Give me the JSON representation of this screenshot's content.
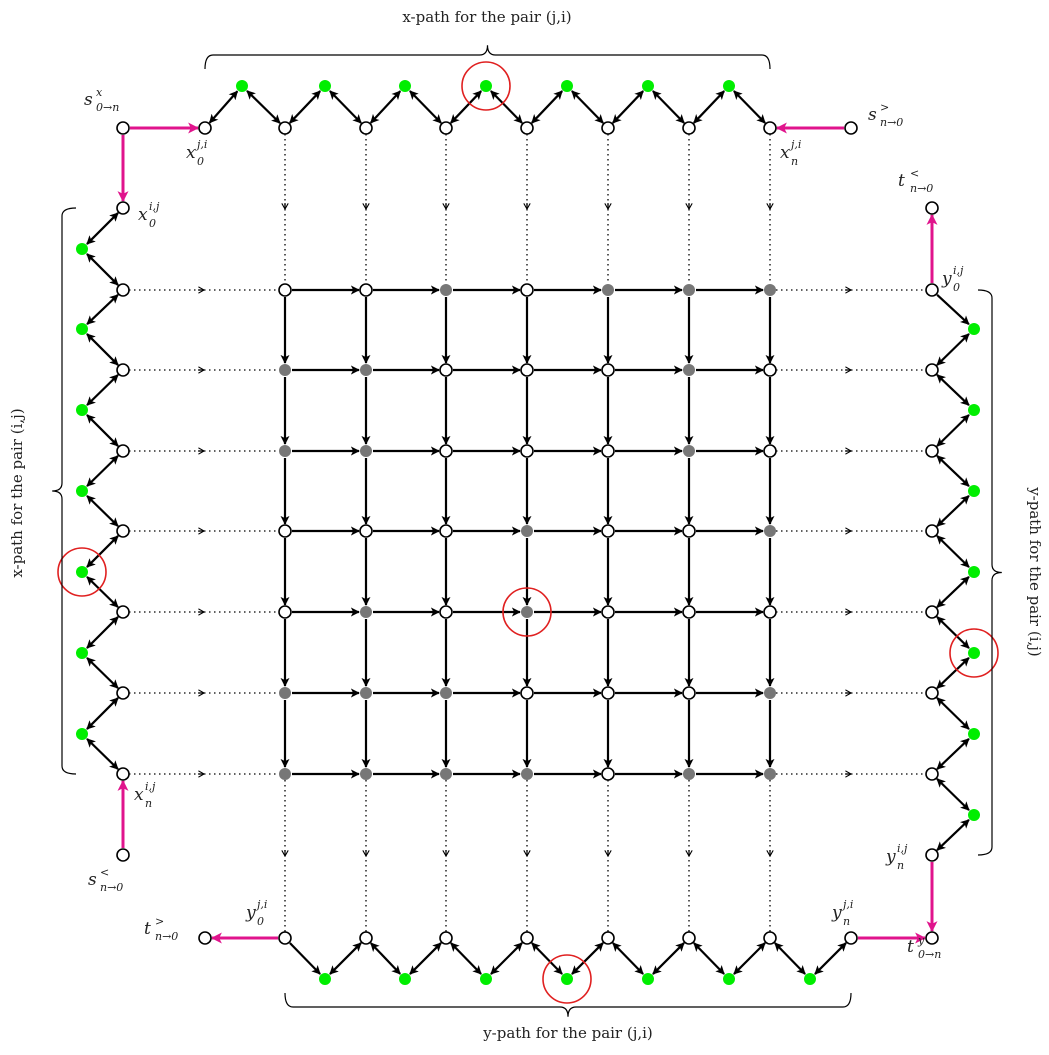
{
  "captions": {
    "top": "x-path for the pair (j,i)",
    "left": "x-path for the pair (i,j)",
    "right": "y-path for the pair (i,j)",
    "bottom": "y-path for the pair (j,i)"
  },
  "labels": {
    "s_x": {
      "base": "s",
      "sup": "x",
      "sub": "0→n"
    },
    "s_gt": {
      "base": "s",
      "sup": ">",
      "sub": "n→0"
    },
    "s_lt": {
      "base": "s",
      "sup": "<",
      "sub": "n→0"
    },
    "t_lt": {
      "base": "t",
      "sup": "<",
      "sub": "n→0"
    },
    "t_gt": {
      "base": "t",
      "sup": ">",
      "sub": "n→0"
    },
    "t_y": {
      "base": "t",
      "sup": "y",
      "sub": "0→n"
    },
    "x0ji": {
      "base": "x",
      "sup": "j,i",
      "sub": "0"
    },
    "xnji": {
      "base": "x",
      "sup": "j,i",
      "sub": "n"
    },
    "x0ij": {
      "base": "x",
      "sup": "i,j",
      "sub": "0"
    },
    "xnij": {
      "base": "x",
      "sup": "i,j",
      "sub": "n"
    },
    "y0ij": {
      "base": "y",
      "sup": "i,j",
      "sub": "0"
    },
    "ynij": {
      "base": "y",
      "sup": "i,j",
      "sub": "n"
    },
    "y0ji": {
      "base": "y",
      "sup": "j,i",
      "sub": "0"
    },
    "ynji": {
      "base": "y",
      "sup": "j,i",
      "sub": "n"
    }
  },
  "grid": {
    "rows": 7,
    "cols": 7,
    "filled": [
      [
        0,
        0,
        1,
        0,
        1,
        1,
        1
      ],
      [
        1,
        1,
        0,
        0,
        0,
        1,
        0
      ],
      [
        1,
        1,
        0,
        0,
        0,
        1,
        0
      ],
      [
        0,
        0,
        0,
        1,
        0,
        0,
        1
      ],
      [
        0,
        1,
        0,
        1,
        0,
        0,
        0
      ],
      [
        1,
        1,
        1,
        0,
        0,
        0,
        1
      ],
      [
        1,
        1,
        1,
        1,
        0,
        1,
        1
      ]
    ]
  },
  "highlights": {
    "top_green_index": 3,
    "bottom_green_index": 3,
    "left_green_index": 4,
    "right_green_index": 4,
    "grid_cell": [
      4,
      3
    ]
  },
  "colors": {
    "green": "#00ee00",
    "gray": "#777777",
    "magenta": "#e0148c",
    "red": "#e02020",
    "black": "#000000"
  }
}
